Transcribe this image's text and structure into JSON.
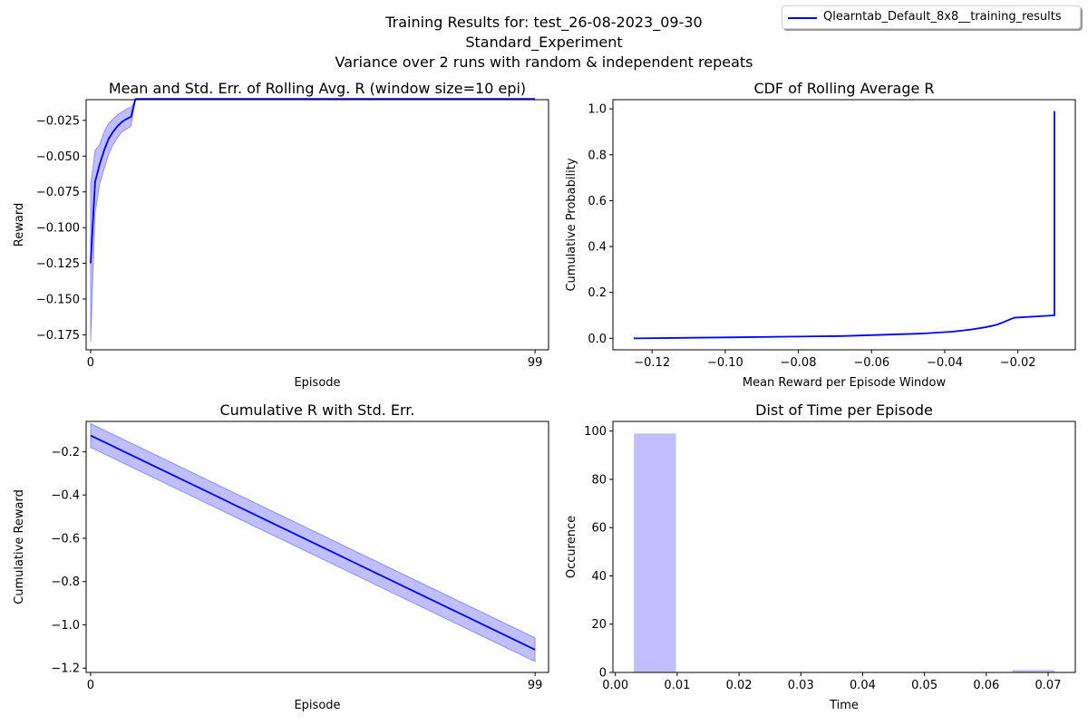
{
  "suptitle": {
    "line1": "Training Results for: test_26-08-2023_09-30",
    "line2": "Standard_Experiment",
    "line3": "Variance over 2 runs with random & independent repeats"
  },
  "legend": {
    "label": "Qlearntab_Default_8x8__training_results",
    "color": "#0000ff"
  },
  "colors": {
    "line": "#0000ff",
    "fill": "#0000ff",
    "fill_opacity": 0.25,
    "bar": "#bfbfff"
  },
  "chart_data": [
    {
      "type": "line",
      "title": "Mean and Std. Err. of Rolling Avg. R (window size=10 epi)",
      "xlabel": "Episode",
      "ylabel": "Reward",
      "xlim": [
        -1,
        102
      ],
      "ylim": [
        -0.1855,
        -0.0105
      ],
      "xticks": [
        0,
        99
      ],
      "yticks": [
        -0.175,
        -0.15,
        -0.125,
        -0.1,
        -0.075,
        -0.05,
        -0.025
      ],
      "ytick_labels": [
        "−0.175",
        "−0.150",
        "−0.125",
        "−0.100",
        "−0.075",
        "−0.050",
        "−0.025"
      ],
      "series": [
        {
          "x": [
            0,
            1,
            2,
            3,
            4,
            5,
            6,
            7,
            8,
            9,
            10,
            99
          ],
          "y": [
            -0.125,
            -0.068,
            -0.056,
            -0.046,
            -0.038,
            -0.033,
            -0.029,
            -0.026,
            -0.024,
            -0.0225,
            -0.01,
            -0.01
          ],
          "lower": [
            -0.18,
            -0.09,
            -0.07,
            -0.059,
            -0.049,
            -0.042,
            -0.037,
            -0.033,
            -0.031,
            -0.029,
            -0.01,
            -0.01
          ],
          "upper": [
            -0.07,
            -0.046,
            -0.042,
            -0.033,
            -0.027,
            -0.024,
            -0.021,
            -0.019,
            -0.017,
            -0.016,
            -0.01,
            -0.01
          ]
        }
      ],
      "grid": false
    },
    {
      "type": "line",
      "title": "CDF of Rolling Average R",
      "xlabel": "Mean Reward per Episode Window",
      "ylabel": "Cumulative Probability",
      "xlim": [
        -0.1307,
        -0.0043
      ],
      "ylim": [
        -0.05,
        1.04
      ],
      "xticks": [
        -0.12,
        -0.1,
        -0.08,
        -0.06,
        -0.04,
        -0.02
      ],
      "xtick_labels": [
        "−0.12",
        "−0.10",
        "−0.08",
        "−0.06",
        "−0.04",
        "−0.02"
      ],
      "yticks": [
        0,
        0.2,
        0.4,
        0.6,
        0.8,
        1.0
      ],
      "ytick_labels": [
        "0.0",
        "0.2",
        "0.4",
        "0.6",
        "0.8",
        "1.0"
      ],
      "series": [
        {
          "x": [
            -0.125,
            -0.1,
            -0.068,
            -0.056,
            -0.046,
            -0.038,
            -0.033,
            -0.029,
            -0.026,
            -0.024,
            -0.0225,
            -0.021,
            -0.01,
            -0.01
          ],
          "y": [
            0.0,
            0.004,
            0.01,
            0.016,
            0.021,
            0.029,
            0.038,
            0.048,
            0.058,
            0.07,
            0.08,
            0.09,
            0.1,
            0.99
          ]
        }
      ],
      "grid": false
    },
    {
      "type": "line",
      "title": "Cumulative R with Std. Err.",
      "xlabel": "Episode",
      "ylabel": "Cumulative Reward",
      "xlim": [
        -1,
        102
      ],
      "ylim": [
        -1.22,
        -0.06
      ],
      "xticks": [
        0,
        99
      ],
      "yticks": [
        -1.2,
        -1.0,
        -0.8,
        -0.6,
        -0.4,
        -0.2
      ],
      "ytick_labels": [
        "−1.2",
        "−1.0",
        "−0.8",
        "−0.6",
        "−0.4",
        "−0.2"
      ],
      "series": [
        {
          "x": [
            0,
            99
          ],
          "y": [
            -0.125,
            -1.115
          ],
          "lower": [
            -0.18,
            -1.17
          ],
          "upper": [
            -0.07,
            -1.06
          ]
        }
      ],
      "grid": false
    },
    {
      "type": "bar",
      "title": "Dist of Time per Episode",
      "xlabel": "Time",
      "ylabel": "Occurence",
      "xlim": [
        -0.0004,
        0.0744
      ],
      "ylim": [
        0,
        104
      ],
      "xticks": [
        0.0,
        0.01,
        0.02,
        0.03,
        0.04,
        0.05,
        0.06,
        0.07
      ],
      "xtick_labels": [
        "0.00",
        "0.01",
        "0.02",
        "0.03",
        "0.04",
        "0.05",
        "0.06",
        "0.07"
      ],
      "yticks": [
        0,
        20,
        40,
        60,
        80,
        100
      ],
      "ytick_labels": [
        "0",
        "20",
        "40",
        "60",
        "80",
        "100"
      ],
      "bin_edges": [
        0.003,
        0.0098,
        0.0166,
        0.0234,
        0.0302,
        0.037,
        0.0438,
        0.0506,
        0.0574,
        0.0642,
        0.071
      ],
      "counts": [
        99,
        0,
        0,
        0,
        0,
        0,
        0,
        0,
        0,
        1
      ],
      "grid": false
    }
  ]
}
